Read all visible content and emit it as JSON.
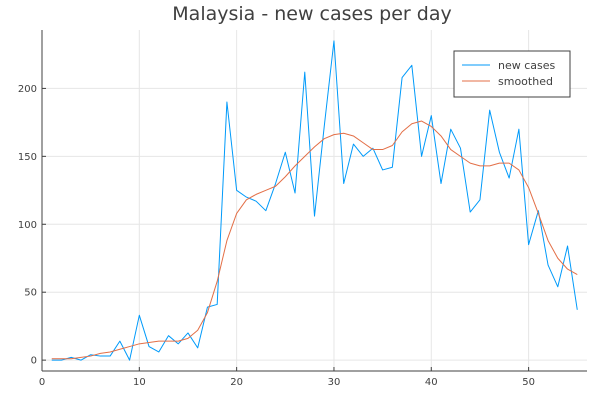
{
  "chart_data": {
    "type": "line",
    "title": "Malaysia - new cases per day",
    "xlabel": "",
    "ylabel": "",
    "xlim": [
      0,
      56
    ],
    "ylim": [
      -8,
      243
    ],
    "x_ticks": [
      0,
      10,
      20,
      30,
      40,
      50
    ],
    "y_ticks": [
      0,
      50,
      100,
      150,
      200
    ],
    "grid": true,
    "legend_position": "top-right",
    "x": [
      1,
      2,
      3,
      4,
      5,
      6,
      7,
      8,
      9,
      10,
      11,
      12,
      13,
      14,
      15,
      16,
      17,
      18,
      19,
      20,
      21,
      22,
      23,
      24,
      25,
      26,
      27,
      28,
      29,
      30,
      31,
      32,
      33,
      34,
      35,
      36,
      37,
      38,
      39,
      40,
      41,
      42,
      43,
      44,
      45,
      46,
      47,
      48,
      49,
      50,
      51,
      52,
      53,
      54,
      55
    ],
    "series": [
      {
        "name": "new cases",
        "color": "#009AFA",
        "values": [
          0,
          0,
          2,
          0,
          4,
          3,
          3,
          14,
          0,
          33,
          10,
          6,
          18,
          12,
          20,
          9,
          39,
          41,
          190,
          125,
          120,
          117,
          110,
          130,
          153,
          123,
          212,
          106,
          172,
          235,
          130,
          159,
          150,
          156,
          140,
          142,
          208,
          217,
          150,
          180,
          130,
          170,
          156,
          109,
          118,
          184,
          153,
          134,
          170,
          85,
          110,
          70,
          54,
          84,
          37
        ]
      },
      {
        "name": "smoothed",
        "color": "#E36F47",
        "values": [
          1,
          1,
          1,
          2,
          3,
          5,
          6,
          8,
          10,
          12,
          13,
          14,
          14,
          14,
          16,
          22,
          35,
          58,
          88,
          108,
          118,
          122,
          125,
          128,
          135,
          143,
          150,
          157,
          163,
          166,
          167,
          165,
          160,
          155,
          155,
          158,
          168,
          174,
          176,
          172,
          165,
          155,
          150,
          145,
          143,
          143,
          145,
          145,
          140,
          127,
          108,
          88,
          75,
          67,
          63
        ]
      }
    ]
  }
}
